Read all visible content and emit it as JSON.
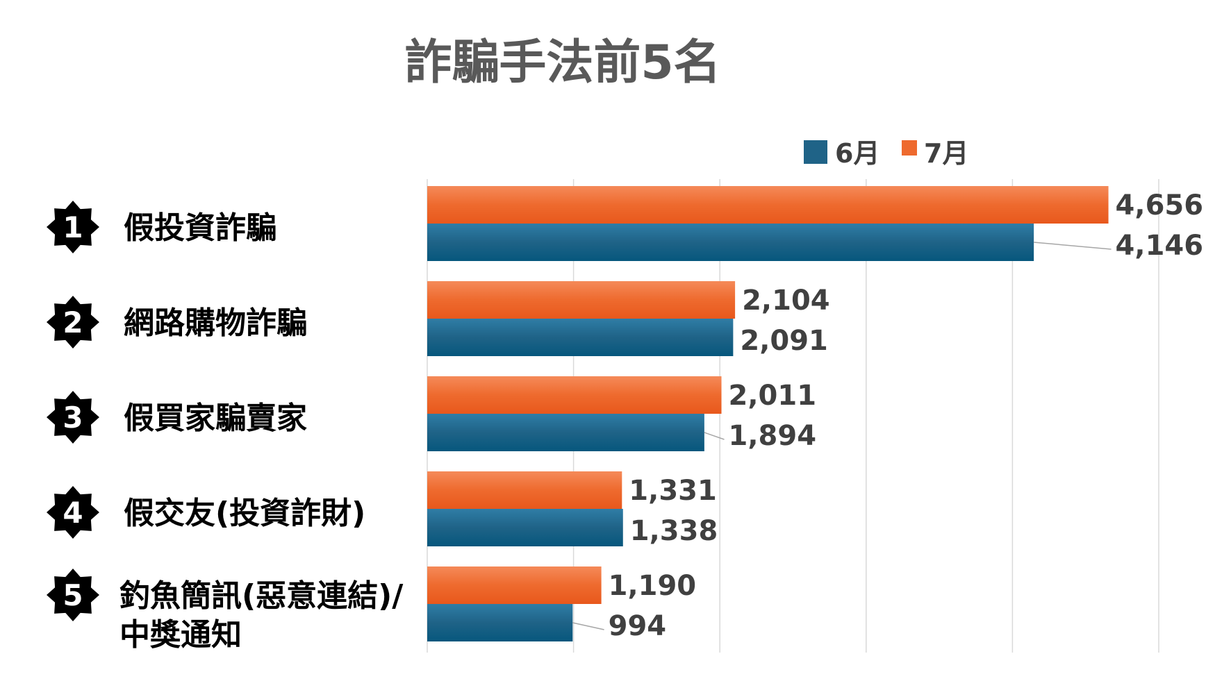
{
  "chart_data": {
    "type": "bar",
    "orientation": "horizontal",
    "title": "詐騙手法前5名",
    "categories": [
      {
        "rank": "1",
        "lines": [
          "假投資詐騙"
        ]
      },
      {
        "rank": "2",
        "lines": [
          "網路購物詐騙"
        ]
      },
      {
        "rank": "3",
        "lines": [
          "假買家騙賣家"
        ]
      },
      {
        "rank": "4",
        "lines": [
          "假交友(投資詐財)"
        ]
      },
      {
        "rank": "5",
        "lines": [
          "釣魚簡訊(惡意連結)/",
          "中獎通知"
        ]
      }
    ],
    "series": [
      {
        "name": "6月",
        "color": "#1f6387",
        "values": [
          4146,
          2091,
          1894,
          1338,
          994
        ],
        "labels": [
          "4,146",
          "2,091",
          "1,894",
          "1,338",
          "994"
        ]
      },
      {
        "name": "7月",
        "color": "#ee6a2e",
        "values": [
          4656,
          2104,
          2011,
          1331,
          1190
        ],
        "labels": [
          "4,656",
          "2,104",
          "2,011",
          "1,331",
          "1,190"
        ]
      }
    ],
    "xlim": [
      0,
      5000
    ],
    "grid": true,
    "legend": "top-right"
  }
}
